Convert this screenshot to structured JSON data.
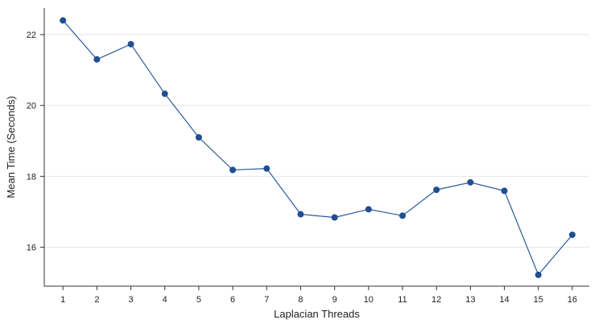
{
  "chart_data": {
    "type": "line",
    "title": "",
    "xlabel": "Laplacian Threads",
    "ylabel": "Mean Time (Seconds)",
    "x": [
      1,
      2,
      3,
      4,
      5,
      6,
      7,
      8,
      9,
      10,
      11,
      12,
      13,
      14,
      15,
      16
    ],
    "series": [
      {
        "values": [
          22.4,
          21.3,
          21.73,
          20.33,
          19.1,
          18.18,
          18.22,
          16.93,
          16.84,
          17.07,
          16.89,
          17.62,
          17.83,
          17.59,
          15.22,
          16.35
        ]
      }
    ],
    "xlim": [
      0.45,
      16.5
    ],
    "ylim": [
      14.9,
      22.75
    ],
    "yticks": [
      16,
      18,
      20,
      22
    ],
    "grid": "horizontal",
    "legend": "none",
    "colors": {
      "line": "#2a5b9c",
      "marker": "#1f4e92",
      "grid": "#e6e6e6",
      "axis": "#333333"
    }
  }
}
